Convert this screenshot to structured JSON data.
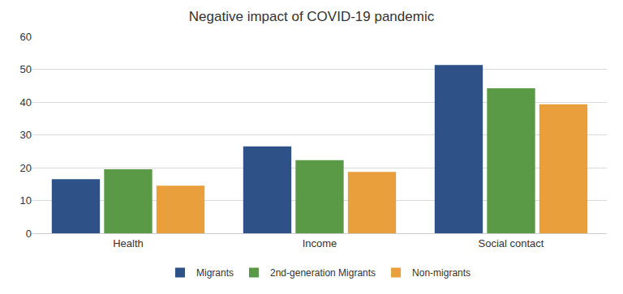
{
  "chart_data": {
    "type": "bar",
    "title": "Negative impact of COVID-19 pandemic",
    "categories": [
      "Health",
      "Income",
      "Social contact"
    ],
    "series": [
      {
        "name": "Migrants",
        "color": "#2e5288",
        "values": [
          16.5,
          26.5,
          51.3
        ]
      },
      {
        "name": "2nd-generation Migrants",
        "color": "#5a9a46",
        "values": [
          19.5,
          22.3,
          44.2
        ]
      },
      {
        "name": "Non-migrants",
        "color": "#e89f3c",
        "values": [
          14.5,
          18.7,
          39.3
        ]
      }
    ],
    "ylim": [
      0,
      60
    ],
    "yticks": [
      0,
      10,
      20,
      30,
      40,
      50,
      60
    ],
    "grid": true,
    "legend": "bottom"
  }
}
